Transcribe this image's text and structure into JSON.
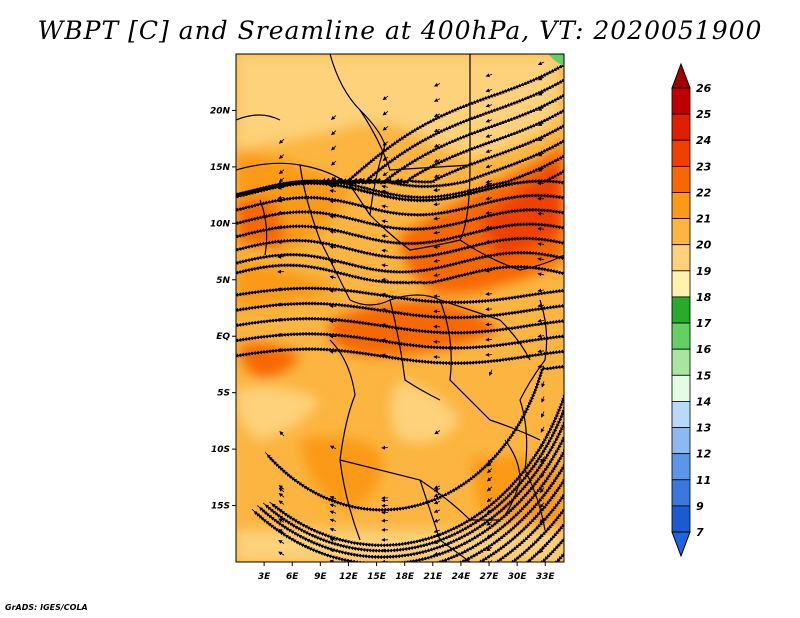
{
  "title": "WBPT [C] and Sreamline at 400hPa, VT: 2020051900",
  "credit": "GrADS: IGES/COLA",
  "lon_axis": {
    "range": [
      0,
      35
    ],
    "ticks": [
      {
        "value": 3,
        "label": "3E"
      },
      {
        "value": 6,
        "label": "6E"
      },
      {
        "value": 9,
        "label": "9E"
      },
      {
        "value": 12,
        "label": "12E"
      },
      {
        "value": 15,
        "label": "15E"
      },
      {
        "value": 18,
        "label": "18E"
      },
      {
        "value": 21,
        "label": "21E"
      },
      {
        "value": 24,
        "label": "24E"
      },
      {
        "value": 27,
        "label": "27E"
      },
      {
        "value": 30,
        "label": "30E"
      },
      {
        "value": 33,
        "label": "33E"
      }
    ]
  },
  "lat_axis": {
    "range": [
      -20,
      25
    ],
    "ticks": [
      {
        "value": 20,
        "label": "20N"
      },
      {
        "value": 15,
        "label": "15N"
      },
      {
        "value": 10,
        "label": "10N"
      },
      {
        "value": 5,
        "label": "5N"
      },
      {
        "value": 0,
        "label": "EQ"
      },
      {
        "value": -5,
        "label": "5S"
      },
      {
        "value": -10,
        "label": "10S"
      },
      {
        "value": -15,
        "label": "15S"
      }
    ]
  },
  "colorbar": {
    "levels": [
      {
        "label": "26",
        "color": "#a00000"
      },
      {
        "label": "25",
        "color": "#c00000"
      },
      {
        "label": "24",
        "color": "#e01e00"
      },
      {
        "label": "23",
        "color": "#f04000"
      },
      {
        "label": "22",
        "color": "#f86800"
      },
      {
        "label": "21",
        "color": "#fb9a16"
      },
      {
        "label": "20",
        "color": "#fbb540"
      },
      {
        "label": "19",
        "color": "#fdd27a"
      },
      {
        "label": "18",
        "color": "#fff2aa"
      },
      {
        "label": "17",
        "color": "#2aaa2a"
      },
      {
        "label": "16",
        "color": "#62d062"
      },
      {
        "label": "15",
        "color": "#a8e6a0"
      },
      {
        "label": "14",
        "color": "#e6fbe6"
      },
      {
        "label": "13",
        "color": "#b8daf8"
      },
      {
        "label": "12",
        "color": "#8cbaf0"
      },
      {
        "label": "11",
        "color": "#5c96e6"
      },
      {
        "label": "9",
        "color": "#3a78dc"
      },
      {
        "label": "7",
        "color": "#1c5ad0"
      }
    ],
    "bottom_color": "#1e64dc"
  },
  "map_colors": {
    "base": "#fbb540",
    "light": "#fdd27a",
    "warm": "#fb9a16",
    "hot": "#f86800",
    "hotter": "#f04000",
    "green": "#62d062",
    "streamline": "#000000",
    "border": "#000000"
  }
}
